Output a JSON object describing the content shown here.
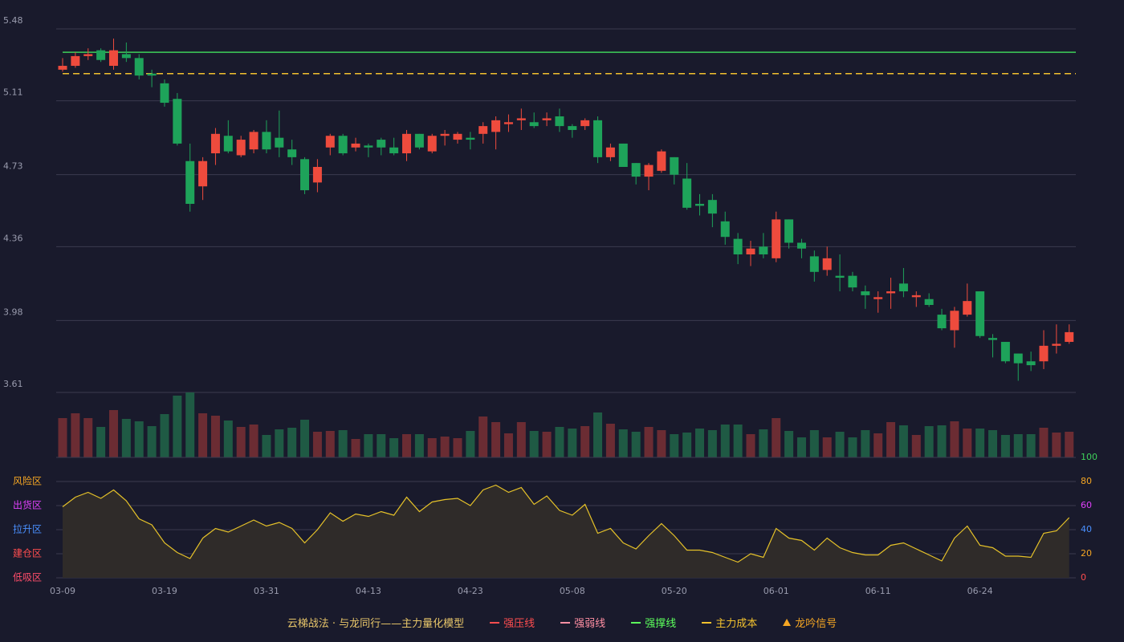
{
  "chart_data": [
    {
      "type": "candlestick",
      "up_color": "#ee4b3d",
      "down_color": "#1ea35a",
      "volume_up_color": "#6b2c33",
      "volume_down_color": "#1f5a44",
      "ylim": [
        3.61,
        5.48
      ],
      "yticks": [
        3.61,
        3.98,
        4.36,
        4.73,
        5.11,
        5.48
      ],
      "grid": true,
      "open": [
        5.27,
        5.29,
        5.34,
        5.37,
        5.29,
        5.35,
        5.33,
        5.25,
        5.2,
        5.12,
        4.8,
        4.67,
        4.84,
        4.93,
        4.83,
        4.86,
        4.95,
        4.92,
        4.86,
        4.81,
        4.69,
        4.87,
        4.93,
        4.87,
        4.88,
        4.91,
        4.87,
        4.84,
        4.94,
        4.85,
        4.93,
        4.91,
        4.92,
        4.94,
        4.95,
        4.99,
        5.01,
        5.0,
        5.01,
        5.03,
        4.98,
        4.98,
        5.01,
        4.82,
        4.89,
        4.79,
        4.72,
        4.75,
        4.82,
        4.71,
        4.58,
        4.6,
        4.49,
        4.4,
        4.32,
        4.36,
        4.3,
        4.5,
        4.38,
        4.31,
        4.24,
        4.21,
        4.21,
        4.13,
        4.09,
        4.12,
        4.17,
        4.1,
        4.09,
        4.01,
        3.93,
        4.01,
        4.13,
        3.89,
        3.87,
        3.81,
        3.77,
        3.77,
        3.85,
        3.87
      ],
      "close": [
        5.29,
        5.34,
        5.35,
        5.32,
        5.37,
        5.33,
        5.24,
        5.24,
        5.1,
        4.89,
        4.58,
        4.8,
        4.94,
        4.85,
        4.91,
        4.95,
        4.86,
        4.87,
        4.82,
        4.65,
        4.77,
        4.93,
        4.84,
        4.89,
        4.87,
        4.87,
        4.84,
        4.94,
        4.87,
        4.93,
        4.94,
        4.94,
        4.91,
        4.98,
        5.01,
        5.0,
        5.02,
        4.98,
        5.02,
        4.98,
        4.96,
        5.01,
        4.82,
        4.87,
        4.77,
        4.72,
        4.78,
        4.85,
        4.73,
        4.56,
        4.57,
        4.53,
        4.41,
        4.32,
        4.35,
        4.32,
        4.5,
        4.38,
        4.35,
        4.23,
        4.3,
        4.2,
        4.15,
        4.11,
        4.1,
        4.13,
        4.13,
        4.11,
        4.06,
        3.94,
        4.03,
        4.08,
        3.9,
        3.88,
        3.77,
        3.76,
        3.75,
        3.85,
        3.86,
        3.92
      ],
      "high": [
        5.33,
        5.36,
        5.38,
        5.38,
        5.43,
        5.41,
        5.35,
        5.27,
        5.22,
        5.15,
        4.89,
        4.82,
        4.97,
        5.01,
        4.93,
        4.96,
        5.01,
        5.06,
        4.91,
        4.82,
        4.81,
        4.94,
        4.94,
        4.92,
        4.89,
        4.92,
        4.92,
        4.96,
        4.94,
        4.94,
        4.96,
        4.95,
        4.95,
        5.0,
        5.03,
        5.04,
        5.07,
        5.05,
        5.05,
        5.07,
        4.99,
        5.02,
        5.03,
        4.89,
        4.89,
        4.79,
        4.79,
        4.86,
        4.82,
        4.79,
        4.63,
        4.63,
        4.54,
        4.43,
        4.39,
        4.43,
        4.54,
        4.5,
        4.4,
        4.34,
        4.36,
        4.32,
        4.23,
        4.16,
        4.13,
        4.2,
        4.25,
        4.13,
        4.12,
        4.04,
        4.05,
        4.17,
        4.13,
        3.91,
        3.87,
        3.81,
        3.82,
        3.93,
        3.96,
        3.96
      ],
      "low": [
        5.26,
        5.28,
        5.32,
        5.31,
        5.27,
        5.31,
        5.22,
        5.18,
        5.08,
        4.88,
        4.54,
        4.6,
        4.78,
        4.84,
        4.82,
        4.84,
        4.84,
        4.82,
        4.78,
        4.63,
        4.64,
        4.83,
        4.83,
        4.85,
        4.82,
        4.83,
        4.83,
        4.8,
        4.86,
        4.84,
        4.88,
        4.89,
        4.86,
        4.89,
        4.86,
        4.95,
        4.96,
        4.97,
        4.98,
        4.95,
        4.92,
        4.96,
        4.79,
        4.8,
        4.77,
        4.68,
        4.65,
        4.74,
        4.68,
        4.55,
        4.52,
        4.46,
        4.37,
        4.27,
        4.26,
        4.3,
        4.28,
        4.35,
        4.3,
        4.18,
        4.21,
        4.13,
        4.13,
        4.04,
        4.02,
        4.04,
        4.1,
        4.05,
        4.05,
        3.93,
        3.84,
        4.0,
        3.89,
        3.79,
        3.76,
        3.67,
        3.72,
        3.73,
        3.81,
        3.86
      ],
      "volume": [
        49,
        55,
        49,
        38,
        59,
        48,
        45,
        39,
        54,
        77,
        81,
        55,
        52,
        46,
        38,
        41,
        28,
        35,
        37,
        47,
        32,
        33,
        34,
        23,
        29,
        29,
        24,
        29,
        29,
        24,
        26,
        24,
        33,
        51,
        44,
        30,
        44,
        33,
        32,
        38,
        36,
        39,
        56,
        42,
        35,
        32,
        38,
        34,
        29,
        31,
        36,
        34,
        41,
        41,
        29,
        35,
        49,
        33,
        25,
        34,
        25,
        32,
        25,
        34,
        30,
        44,
        40,
        28,
        39,
        40,
        45,
        36,
        36,
        34,
        28,
        29,
        29,
        37,
        31,
        32
      ],
      "levels": [
        {
          "value": 5.36,
          "color": "#3ecf5a",
          "dash": false
        },
        {
          "value": 5.25,
          "color": "#f2c12e",
          "dash": true
        }
      ]
    },
    {
      "type": "line",
      "title": "云梯战法 · 与龙同行——主力量化模型",
      "categories": [
        "03-09",
        null,
        null,
        null,
        null,
        null,
        null,
        null,
        "03-19",
        null,
        null,
        null,
        null,
        null,
        null,
        null,
        "03-31",
        null,
        null,
        null,
        null,
        null,
        null,
        null,
        "04-13",
        null,
        null,
        null,
        null,
        null,
        null,
        null,
        "04-23",
        null,
        null,
        null,
        null,
        null,
        null,
        null,
        "05-08",
        null,
        null,
        null,
        null,
        null,
        null,
        null,
        "05-20",
        null,
        null,
        null,
        null,
        null,
        null,
        null,
        "06-01",
        null,
        null,
        null,
        null,
        null,
        null,
        null,
        "06-11",
        null,
        null,
        null,
        null,
        null,
        null,
        null,
        "06-24",
        null,
        null,
        null,
        null,
        null,
        null,
        null
      ],
      "values": [
        59,
        67,
        71,
        66,
        73,
        64,
        49,
        44,
        29,
        21,
        16,
        33,
        41,
        38,
        43,
        48,
        43,
        46,
        41,
        29,
        40,
        54,
        47,
        53,
        51,
        55,
        52,
        67,
        55,
        63,
        65,
        66,
        60,
        73,
        77,
        71,
        75,
        61,
        68,
        56,
        52,
        61,
        37,
        41,
        29,
        24,
        35,
        45,
        35,
        23,
        23,
        21,
        17,
        13,
        20,
        17,
        41,
        33,
        31,
        23,
        33,
        25,
        21,
        19,
        19,
        27,
        29,
        24,
        19,
        14,
        33,
        43,
        27,
        25,
        18,
        18,
        17,
        37,
        39,
        50
      ],
      "color": "#e6c229",
      "ylim": [
        0,
        100
      ],
      "yticks": [
        0,
        20,
        40,
        60,
        80,
        100
      ],
      "ytick_colors": [
        "#ff4d4f",
        "#f5a623",
        "#4a90ff",
        "#e040fb",
        "#f5a623",
        "#3ecf5a"
      ],
      "zones": [
        {
          "label": "风险区",
          "value": 80,
          "color": "#f5a623"
        },
        {
          "label": "出货区",
          "value": 60,
          "color": "#e040fb"
        },
        {
          "label": "拉升区",
          "value": 40,
          "color": "#4a90ff"
        },
        {
          "label": "建仓区",
          "value": 20,
          "color": "#ff4d4f"
        },
        {
          "label": "低吸区",
          "value": 0,
          "color": "#ff4d6a"
        }
      ],
      "legend": [
        {
          "name": "强压线",
          "color": "#ff4d4f",
          "style": "solid"
        },
        {
          "name": "强弱线",
          "color": "#ff8fa3",
          "style": "dashed"
        },
        {
          "name": "强撑线",
          "color": "#5cff5c",
          "style": "solid"
        },
        {
          "name": "主力成本",
          "color": "#f2c12e",
          "style": "dashed"
        },
        {
          "name": "龙吟信号",
          "color": "#f5a623",
          "style": "triangle"
        }
      ]
    }
  ]
}
